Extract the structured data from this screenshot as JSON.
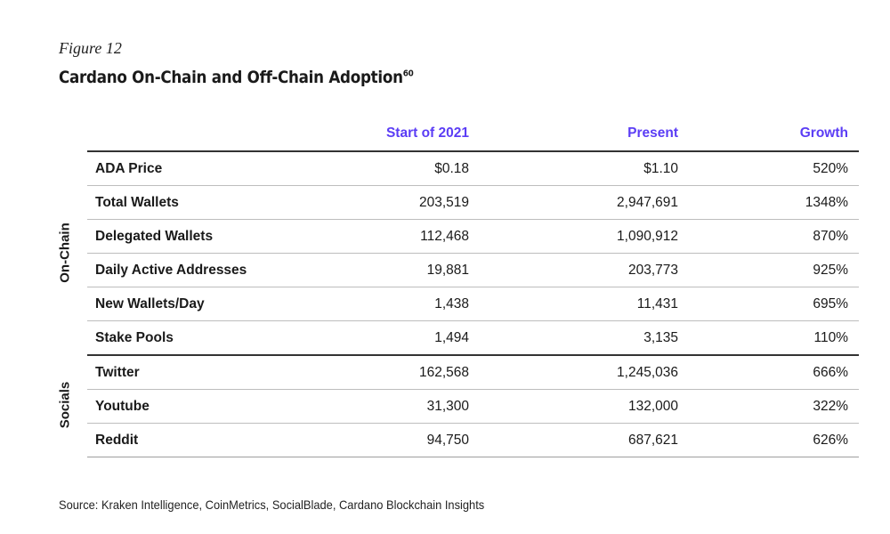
{
  "figure": {
    "label": "Figure 12",
    "title": "Cardano On-Chain and Off-Chain Adoption",
    "footnote_ref": "60"
  },
  "table": {
    "columns": [
      "",
      "Start of 2021",
      "Present",
      "Growth"
    ],
    "groups": [
      {
        "label": "On-Chain",
        "rows": [
          {
            "metric": "ADA Price",
            "start": "$0.18",
            "present": "$1.10",
            "growth": "520%"
          },
          {
            "metric": "Total Wallets",
            "start": "203,519",
            "present": "2,947,691",
            "growth": "1348%"
          },
          {
            "metric": "Delegated Wallets",
            "start": "112,468",
            "present": "1,090,912",
            "growth": "870%"
          },
          {
            "metric": "Daily Active Addresses",
            "start": "19,881",
            "present": "203,773",
            "growth": "925%"
          },
          {
            "metric": "New Wallets/Day",
            "start": "1,438",
            "present": "11,431",
            "growth": "695%"
          },
          {
            "metric": "Stake Pools",
            "start": "1,494",
            "present": "3,135",
            "growth": "110%"
          }
        ]
      },
      {
        "label": "Socials",
        "rows": [
          {
            "metric": "Twitter",
            "start": "162,568",
            "present": "1,245,036",
            "growth": "666%"
          },
          {
            "metric": "Youtube",
            "start": "31,300",
            "present": "132,000",
            "growth": "322%"
          },
          {
            "metric": "Reddit",
            "start": "94,750",
            "present": "687,621",
            "growth": "626%"
          }
        ]
      }
    ]
  },
  "source": "Source: Kraken Intelligence, CoinMetrics, SocialBlade, Cardano Blockchain Insights",
  "colors": {
    "header_accent": "#5b3df5",
    "text": "#1a1a1a",
    "rule_strong": "#333333",
    "rule_light": "#bdbdbd"
  }
}
